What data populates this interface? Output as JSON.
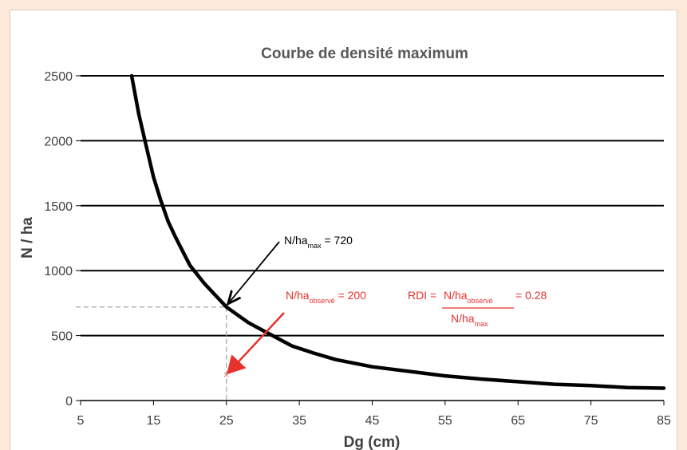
{
  "chart_data": {
    "type": "line",
    "title": "Courbe de densité maximum",
    "xlabel": "Dg (cm)",
    "ylabel": "N / ha",
    "xlim": [
      5,
      85
    ],
    "ylim": [
      0,
      2500
    ],
    "x_ticks": [
      "5",
      "15",
      "25",
      "35",
      "45",
      "55",
      "65",
      "75",
      "85"
    ],
    "y_ticks": [
      "0",
      "500",
      "1000",
      "1500",
      "2000",
      "2500"
    ],
    "grid": "horizontal",
    "legend": "none",
    "series": [
      {
        "color": "#000000",
        "x": [
          12,
          13,
          14,
          15,
          16,
          17,
          18,
          19,
          20,
          22,
          25,
          28,
          30,
          32,
          34,
          37,
          40,
          45,
          50,
          55,
          60,
          65,
          70,
          75,
          80,
          85
        ],
        "y": [
          2500,
          2200,
          1960,
          1720,
          1540,
          1380,
          1260,
          1150,
          1040,
          900,
          720,
          600,
          540,
          480,
          420,
          365,
          315,
          260,
          225,
          190,
          165,
          145,
          125,
          115,
          100,
          95
        ]
      }
    ],
    "annotations": {
      "max_label": {
        "prefix": "N/ha",
        "sub": "max",
        "suffix": " = 720",
        "color": "#000000"
      },
      "observed_label": {
        "prefix": "N/ha",
        "sub": "observé",
        "suffix": " = 200",
        "color": "#e5322d"
      },
      "rdi": {
        "lhs": "RDI = ",
        "num_prefix": "N/ha",
        "num_sub": "observé",
        "den_prefix": "N/ha",
        "den_sub": "max",
        "result": " = 0.28",
        "color": "#e5322d"
      },
      "observed_point": {
        "x": 25,
        "y": 200,
        "marker": "×",
        "color": "#e58080"
      },
      "max_point": {
        "x": 25,
        "y": 720
      }
    }
  }
}
